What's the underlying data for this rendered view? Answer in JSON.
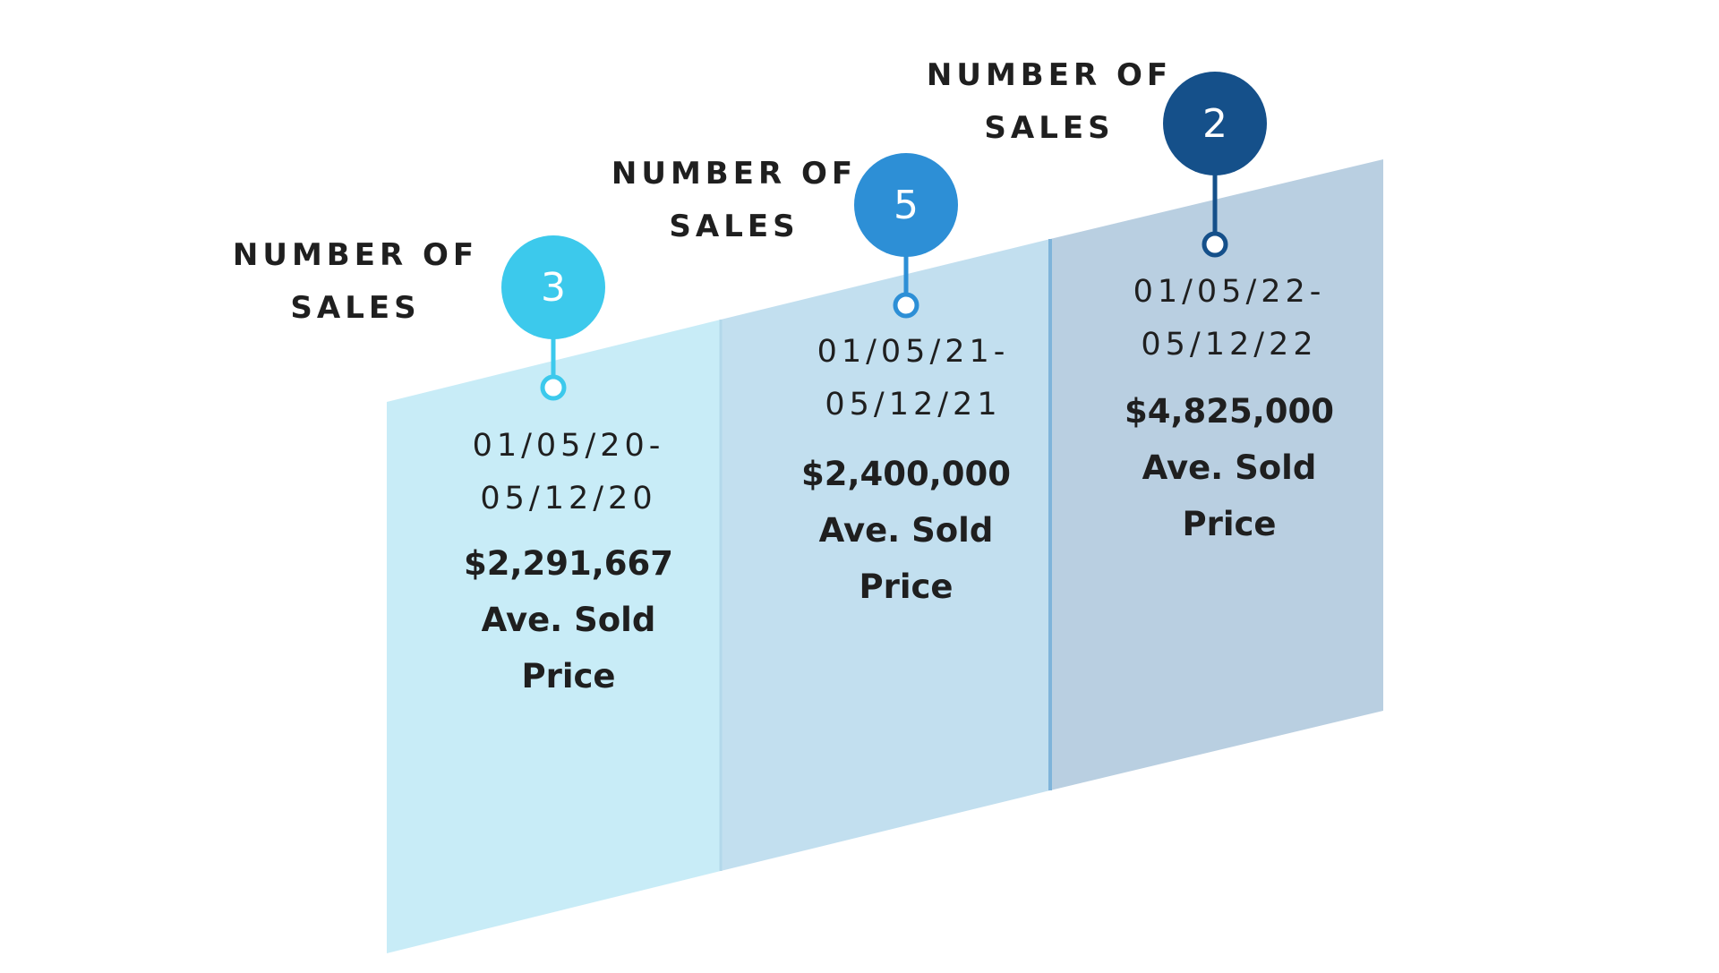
{
  "colors": {
    "panel_1": "#c8ecf7",
    "panel_2": "#c2dfef",
    "panel_3": "#b9cfe1",
    "divider_1": "#b3d8ea",
    "divider_2": "#7fb4da",
    "bubble_1": "#3cc9ec",
    "bubble_2": "#2d8fd6",
    "bubble_3": "#15508a",
    "text": "#1f1f1f"
  },
  "periods": [
    {
      "label_line1": "NUMBER OF",
      "label_line2": "SALES",
      "count": "3",
      "date_line1": "01/05/20-",
      "date_line2": "05/12/20",
      "price": "$2,291,667",
      "price_label_line1": "Ave. Sold",
      "price_label_line2": "Price"
    },
    {
      "label_line1": "NUMBER OF",
      "label_line2": "SALES",
      "count": "5",
      "date_line1": "01/05/21-",
      "date_line2": "05/12/21",
      "price": "$2,400,000",
      "price_label_line1": "Ave. Sold",
      "price_label_line2": "Price"
    },
    {
      "label_line1": "NUMBER OF",
      "label_line2": "SALES",
      "count": "2",
      "date_line1": "01/05/22-",
      "date_line2": "05/12/22",
      "price": "$4,825,000",
      "price_label_line1": "Ave. Sold",
      "price_label_line2": "Price"
    }
  ]
}
